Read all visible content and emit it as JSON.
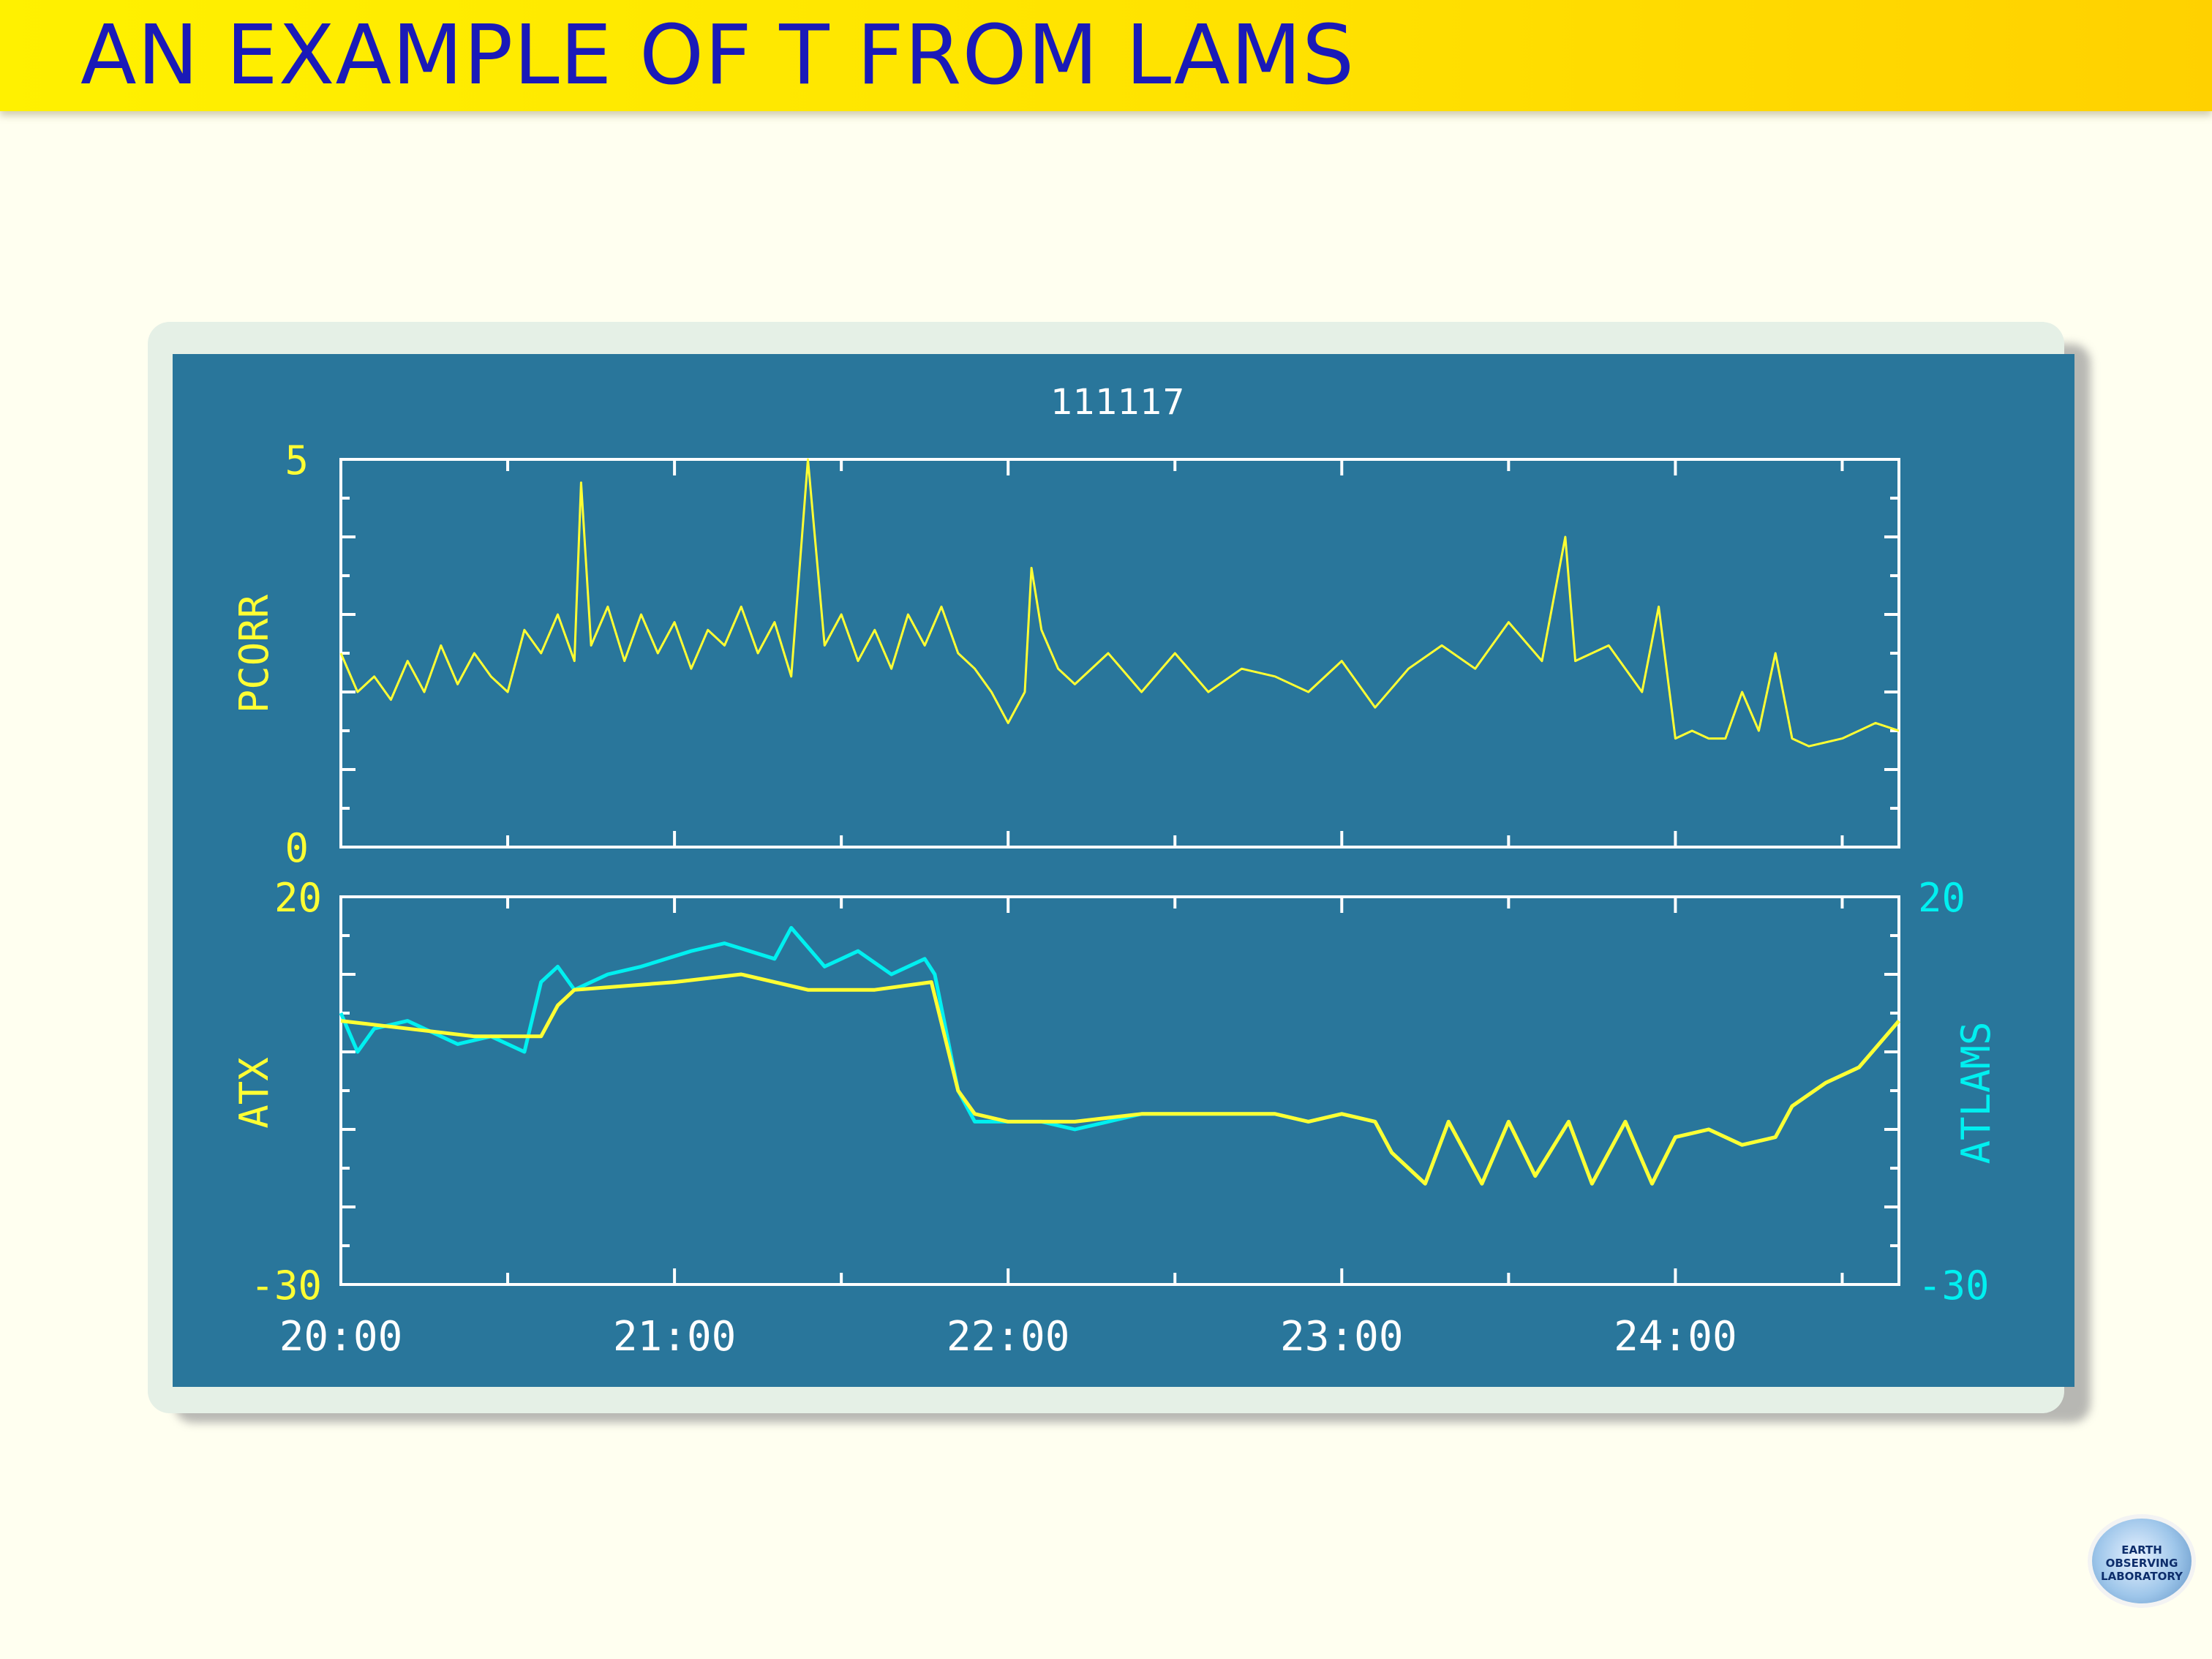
{
  "slide": {
    "title": "AN EXAMPLE OF T FROM LAMS"
  },
  "logo": {
    "line1": "EARTH",
    "line2": "OBSERVING",
    "line3": "LABORATORY"
  },
  "colors": {
    "plot_background": "#29769b",
    "axes": "#ffffff",
    "pcorr": "#ffff33",
    "atx": "#ffff33",
    "atlams": "#00f0f0",
    "title_text": "#1a1ab8",
    "title_bar": "#ffe100"
  },
  "chart_data": [
    {
      "type": "line",
      "title": "111117",
      "ylabel": "PCORR",
      "ylim": [
        0,
        5
      ],
      "yticks_labeled": [
        "0",
        "5"
      ],
      "xlim": [
        20.0,
        24.67
      ],
      "grid": false,
      "series": [
        {
          "name": "PCORR",
          "x": [
            20.0,
            20.05,
            20.1,
            20.15,
            20.2,
            20.25,
            20.3,
            20.35,
            20.4,
            20.45,
            20.5,
            20.55,
            20.6,
            20.65,
            20.7,
            20.72,
            20.75,
            20.8,
            20.85,
            20.9,
            20.95,
            21.0,
            21.05,
            21.1,
            21.15,
            21.2,
            21.25,
            21.3,
            21.35,
            21.4,
            21.45,
            21.5,
            21.55,
            21.6,
            21.65,
            21.7,
            21.75,
            21.8,
            21.85,
            21.9,
            21.95,
            22.0,
            22.05,
            22.07,
            22.1,
            22.15,
            22.2,
            22.3,
            22.4,
            22.5,
            22.6,
            22.7,
            22.8,
            22.9,
            23.0,
            23.1,
            23.2,
            23.3,
            23.4,
            23.5,
            23.6,
            23.67,
            23.7,
            23.8,
            23.9,
            23.95,
            24.0,
            24.05,
            24.1,
            24.15,
            24.2,
            24.25,
            24.3,
            24.35,
            24.4,
            24.5,
            24.6,
            24.67
          ],
          "y": [
            2.5,
            2.0,
            2.2,
            1.9,
            2.4,
            2.0,
            2.6,
            2.1,
            2.5,
            2.2,
            2.0,
            2.8,
            2.5,
            3.0,
            2.4,
            4.7,
            2.6,
            3.1,
            2.4,
            3.0,
            2.5,
            2.9,
            2.3,
            2.8,
            2.6,
            3.1,
            2.5,
            2.9,
            2.2,
            5.0,
            2.6,
            3.0,
            2.4,
            2.8,
            2.3,
            3.0,
            2.6,
            3.1,
            2.5,
            2.3,
            2.0,
            1.6,
            2.0,
            3.6,
            2.8,
            2.3,
            2.1,
            2.5,
            2.0,
            2.5,
            2.0,
            2.3,
            2.2,
            2.0,
            2.4,
            1.8,
            2.3,
            2.6,
            2.3,
            2.9,
            2.4,
            4.0,
            2.4,
            2.6,
            2.0,
            3.1,
            1.4,
            1.5,
            1.4,
            1.4,
            2.0,
            1.5,
            2.5,
            1.4,
            1.3,
            1.4,
            1.6,
            1.5
          ]
        }
      ]
    },
    {
      "type": "line",
      "xlabel": "",
      "ylabel": "ATX",
      "ylabel_right": "ATLAMS",
      "ylim": [
        -30,
        20
      ],
      "yticks_labeled": [
        "-30",
        "20"
      ],
      "xlim": [
        20.0,
        24.67
      ],
      "xticks": [
        "20:00",
        "21:00",
        "22:00",
        "23:00",
        "24:00"
      ],
      "grid": false,
      "series": [
        {
          "name": "ATX",
          "x": [
            20.0,
            20.2,
            20.4,
            20.6,
            20.65,
            20.7,
            21.0,
            21.2,
            21.4,
            21.6,
            21.77,
            21.85,
            21.9,
            22.0,
            22.2,
            22.4,
            22.6,
            22.8,
            22.9,
            23.0,
            23.1,
            23.15,
            23.25,
            23.32,
            23.42,
            23.5,
            23.58,
            23.68,
            23.75,
            23.85,
            23.93,
            24.0,
            24.1,
            24.2,
            24.3,
            24.35,
            24.45,
            24.55,
            24.67
          ],
          "y": [
            4,
            3,
            2,
            2,
            6,
            8,
            9,
            10,
            8,
            8,
            9,
            -5,
            -8,
            -9,
            -9,
            -8,
            -8,
            -8,
            -9,
            -8,
            -9,
            -13,
            -17,
            -9,
            -17,
            -9,
            -16,
            -9,
            -17,
            -9,
            -17,
            -11,
            -10,
            -12,
            -11,
            -7,
            -4,
            -2,
            4
          ]
        },
        {
          "name": "ATLAMS",
          "x": [
            20.0,
            20.05,
            20.1,
            20.2,
            20.35,
            20.45,
            20.55,
            20.6,
            20.65,
            20.7,
            20.8,
            20.9,
            21.05,
            21.15,
            21.3,
            21.35,
            21.45,
            21.55,
            21.65,
            21.75,
            21.78,
            21.85,
            21.9,
            22.0,
            22.1,
            22.2,
            22.3,
            22.4,
            22.6,
            22.8,
            22.9,
            23.0,
            23.1,
            23.15,
            23.25,
            23.32,
            23.42,
            23.5,
            23.58,
            23.68,
            23.75,
            23.85,
            23.93,
            24.0,
            24.1,
            24.2,
            24.3,
            24.35,
            24.45,
            24.55,
            24.67
          ],
          "y": [
            5,
            0,
            3,
            4,
            1,
            2,
            0,
            9,
            11,
            8,
            10,
            11,
            13,
            14,
            12,
            16,
            11,
            13,
            10,
            12,
            10,
            -5,
            -9,
            -9,
            -9,
            -10,
            -9,
            -8,
            -8,
            -8,
            -9,
            -8,
            -9,
            -13,
            -17,
            -9,
            -17,
            -9,
            -16,
            -9,
            -17,
            -9,
            -17,
            -11,
            -10,
            -12,
            -11,
            -7,
            -4,
            -2,
            4
          ]
        }
      ]
    }
  ]
}
